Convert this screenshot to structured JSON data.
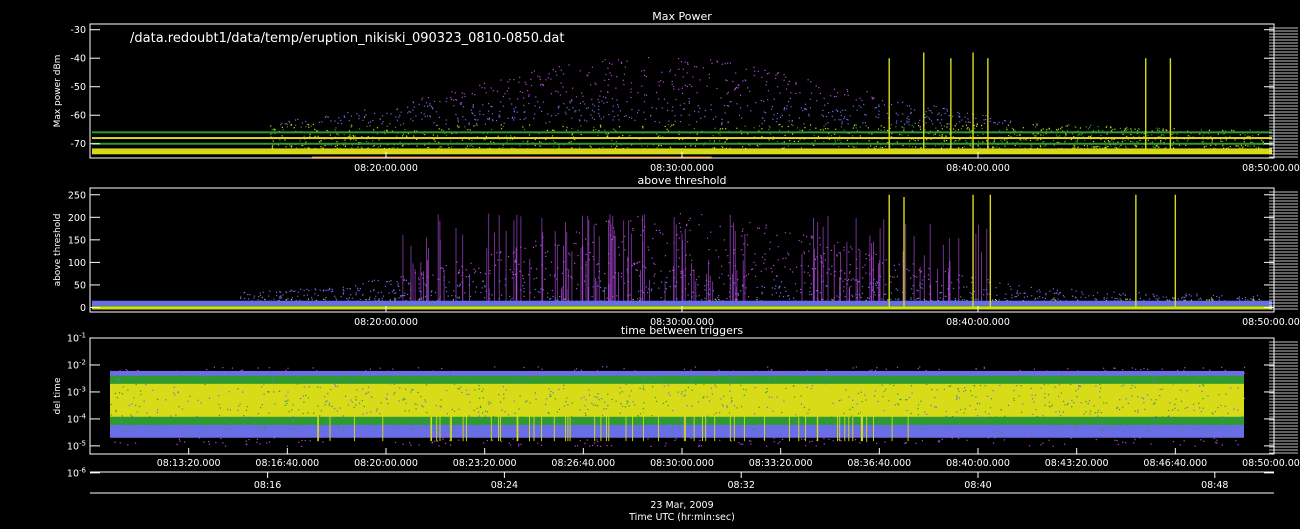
{
  "file_path": "/data.redoubt1/data/temp/eruption_nikiski_090323_0810-0850.dat",
  "date": "23 Mar, 2009",
  "time_label": "Time UTC (hr:min:sec)",
  "colors": {
    "background": "#000000",
    "axes": "#ffffff",
    "purple": "#b44be0",
    "blue": "#6a6ee6",
    "green": "#2f9a2f",
    "yellow": "#d8dc18",
    "orange": "#ff7a00"
  },
  "chart_data": [
    {
      "type": "scatter",
      "title": "Max Power",
      "ylabel": "Max power dBm",
      "ylim": [
        -75,
        -28
      ],
      "yticks": [
        "-30",
        "-40",
        "-50",
        "-60",
        "-70"
      ],
      "ytick_values": [
        -30,
        -40,
        -50,
        -60,
        -70
      ],
      "xlim": [
        "08:10:00",
        "08:50:00"
      ],
      "xticks": [
        "08:20:00.000",
        "08:30:00.000",
        "08:40:00.000",
        "08:50:00.000"
      ],
      "xtick_values": [
        "08:20:00",
        "08:30:00",
        "08:40:00",
        "08:50:00"
      ],
      "floor_dbm": -73,
      "bands_dbm": [
        -66,
        -68,
        -70,
        -72
      ],
      "spikes": [
        {
          "t": "08:37:00",
          "v": -40
        },
        {
          "t": "08:38:10",
          "v": -38
        },
        {
          "t": "08:39:05",
          "v": -40
        },
        {
          "t": "08:39:50",
          "v": -38
        },
        {
          "t": "08:40:20",
          "v": -40
        },
        {
          "t": "08:45:40",
          "v": -40
        },
        {
          "t": "08:46:30",
          "v": -40
        }
      ],
      "grid": false
    },
    {
      "type": "scatter",
      "title": "above threshold",
      "ylabel": "above threshold",
      "ylim": [
        -10,
        265
      ],
      "yticks": [
        "250",
        "200",
        "150",
        "100",
        "50",
        "0"
      ],
      "ytick_values": [
        250,
        200,
        150,
        100,
        50,
        0
      ],
      "xlim": [
        "08:10:00",
        "08:50:00"
      ],
      "xticks": [
        "08:20:00.000",
        "08:30:00.000",
        "08:40:00.000",
        "08:50:00.000"
      ],
      "xtick_values": [
        "08:20:00",
        "08:30:00",
        "08:40:00",
        "08:50:00"
      ],
      "spikes": [
        {
          "t": "08:37:00",
          "v": 250
        },
        {
          "t": "08:37:30",
          "v": 245
        },
        {
          "t": "08:39:50",
          "v": 250
        },
        {
          "t": "08:40:25",
          "v": 250
        },
        {
          "t": "08:45:20",
          "v": 250
        },
        {
          "t": "08:46:40",
          "v": 250
        }
      ],
      "grid": false
    },
    {
      "type": "scatter",
      "title": "time between triggers",
      "ylabel": "del time",
      "yscale": "log",
      "ylim": [
        5e-06,
        0.1
      ],
      "yticks": [
        "10^-1",
        "10^-2",
        "10^-3",
        "10^-4",
        "10^-5",
        "10^-6"
      ],
      "ytick_values": [
        0.1,
        0.01,
        0.001,
        0.0001,
        1e-05,
        1e-06
      ],
      "xlim": [
        "08:10:00",
        "08:50:00"
      ],
      "xticks": [
        "08:13:20.000",
        "08:16:40.000",
        "08:20:00.000",
        "08:23:20.000",
        "08:26:40.000",
        "08:30:00.000",
        "08:33:20.000",
        "08:36:40.000",
        "08:40:00.000",
        "08:43:20.000",
        "08:46:40.000",
        "08:50:00.000"
      ],
      "xtick_values": [
        "08:13:20",
        "08:16:40",
        "08:20:00",
        "08:23:20",
        "08:26:40",
        "08:30:00",
        "08:33:20",
        "08:36:40",
        "08:40:00",
        "08:43:20",
        "08:46:40",
        "08:50:00"
      ],
      "band_center": 0.0005,
      "grid": false
    }
  ],
  "time_axis": {
    "ticks": [
      "08:16",
      "08:24",
      "08:32",
      "08:40",
      "08:48"
    ],
    "tick_values": [
      "08:16",
      "08:24",
      "08:32",
      "08:40",
      "08:48"
    ]
  }
}
